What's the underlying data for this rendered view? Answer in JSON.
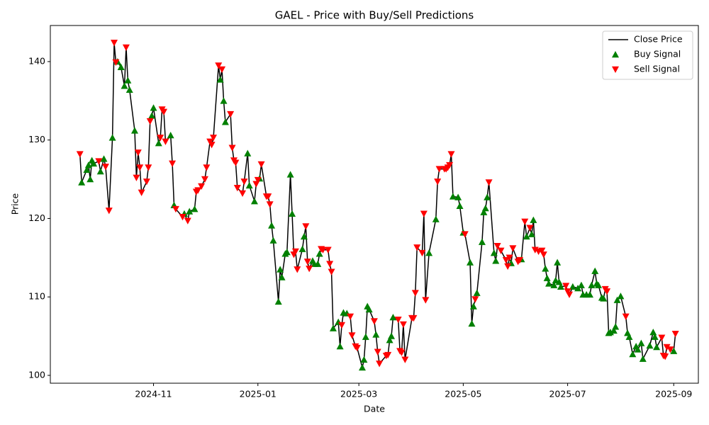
{
  "chart_data": {
    "type": "line",
    "title": "GAEL - Price with Buy/Sell Predictions",
    "x_label": "Date",
    "y_label": "Price",
    "xlim": [
      -29.3,
      349.4
    ],
    "xticks": [
      {
        "value": 31,
        "label": "2024-11"
      },
      {
        "value": 92,
        "label": "2025-01"
      },
      {
        "value": 151,
        "label": "2025-03"
      },
      {
        "value": 212,
        "label": "2025-05"
      },
      {
        "value": 273,
        "label": "2025-07"
      },
      {
        "value": 335,
        "label": "2025-09"
      }
    ],
    "ylim": [
      99.0,
      144.6
    ],
    "yticks": [
      100,
      110,
      120,
      130,
      140
    ],
    "grid": false,
    "legend": "upper right",
    "x": [
      -12,
      -11,
      -8,
      -7,
      -6,
      -5,
      -4,
      -1,
      0,
      2,
      3,
      5,
      7,
      8,
      9,
      10,
      12,
      14,
      15,
      16,
      17,
      20,
      21,
      22,
      23,
      24,
      27,
      28,
      29,
      30,
      31,
      34,
      35,
      36,
      37,
      38,
      41,
      42,
      43,
      44,
      48,
      49,
      51,
      52,
      55,
      56,
      57,
      59,
      61,
      62,
      64,
      65,
      66,
      69,
      70,
      71,
      72,
      73,
      76,
      77,
      78,
      79,
      80,
      83,
      84,
      86,
      87,
      90,
      91,
      92,
      93,
      94,
      97,
      98,
      99,
      100,
      101,
      104,
      105,
      106,
      108,
      109,
      111,
      112,
      113,
      114,
      115,
      118,
      119,
      120,
      121,
      122,
      124,
      125,
      127,
      128,
      129,
      130,
      133,
      134,
      135,
      136,
      139,
      140,
      141,
      142,
      144,
      146,
      147,
      149,
      150,
      153,
      154,
      155,
      156,
      157,
      160,
      161,
      162,
      163,
      167,
      168,
      169,
      170,
      171,
      174,
      175,
      176,
      177,
      178,
      182,
      183,
      184,
      185,
      188,
      189,
      190,
      192,
      196,
      197,
      198,
      201,
      202,
      203,
      204,
      205,
      206,
      209,
      210,
      212,
      213,
      216,
      217,
      218,
      219,
      220,
      223,
      224,
      225,
      226,
      227,
      230,
      231,
      232,
      234,
      237,
      238,
      239,
      240,
      241,
      244,
      245,
      246,
      248,
      249,
      251,
      252,
      253,
      254,
      256,
      258,
      259,
      260,
      261,
      262,
      265,
      266,
      267,
      268,
      269,
      272,
      273,
      274,
      276,
      279,
      281,
      282,
      284,
      286,
      287,
      289,
      290,
      291,
      293,
      294,
      295,
      296,
      297,
      298,
      300,
      301,
      302,
      304,
      307,
      308,
      309,
      311,
      313,
      314,
      316,
      317,
      321,
      323,
      324,
      325,
      328,
      329,
      330,
      331,
      333,
      335,
      336
    ],
    "series": [
      {
        "name": "Close Price",
        "color": "#000000",
        "marker": "none",
        "values": [
          128.2,
          124.6,
          126.2,
          126.8,
          125.0,
          127.4,
          127.0,
          127.3,
          126.0,
          127.6,
          126.6,
          121.0,
          130.3,
          142.4,
          139.9,
          140.0,
          139.3,
          136.9,
          141.8,
          137.6,
          136.4,
          131.2,
          125.2,
          128.4,
          126.5,
          123.3,
          124.7,
          126.5,
          132.4,
          133.1,
          134.1,
          129.6,
          130.3,
          133.9,
          133.6,
          129.8,
          130.6,
          127.0,
          121.7,
          121.2,
          120.2,
          120.6,
          119.7,
          120.9,
          121.2,
          123.4,
          123.6,
          124.1,
          125.0,
          126.5,
          129.8,
          129.4,
          130.3,
          139.5,
          137.7,
          139.0,
          135.0,
          132.3,
          133.3,
          129.0,
          127.4,
          127.1,
          123.9,
          123.2,
          124.7,
          128.3,
          124.2,
          122.2,
          124.4,
          124.9,
          125.1,
          126.9,
          122.8,
          122.8,
          121.8,
          119.1,
          117.2,
          109.4,
          113.5,
          112.5,
          115.5,
          115.7,
          125.6,
          120.6,
          115.4,
          115.8,
          113.5,
          116.1,
          117.7,
          119.0,
          114.5,
          113.6,
          114.6,
          114.2,
          114.2,
          115.5,
          116.1,
          116.0,
          116.0,
          114.2,
          113.2,
          106.0,
          106.8,
          103.7,
          106.4,
          108.0,
          107.9,
          107.5,
          105.1,
          103.7,
          103.5,
          101.0,
          102.0,
          104.9,
          108.8,
          108.4,
          106.9,
          105.2,
          103.0,
          101.5,
          102.5,
          102.6,
          104.5,
          105.0,
          107.4,
          107.1,
          103.1,
          102.9,
          106.5,
          102.0,
          107.3,
          107.3,
          110.5,
          116.3,
          115.6,
          120.6,
          109.6,
          115.6,
          119.9,
          124.7,
          126.3,
          126.3,
          126.3,
          126.5,
          126.8,
          128.2,
          122.8,
          122.7,
          121.6,
          118.2,
          118.0,
          114.4,
          106.6,
          108.8,
          109.7,
          110.5,
          117.0,
          120.8,
          121.3,
          122.7,
          124.6,
          115.6,
          114.6,
          116.5,
          115.9,
          114.7,
          113.9,
          115.0,
          114.3,
          116.2,
          114.5,
          114.7,
          114.8,
          119.6,
          117.7,
          118.8,
          118.0,
          119.8,
          116.0,
          115.8,
          115.9,
          115.4,
          113.6,
          112.4,
          111.7,
          111.5,
          112.1,
          114.4,
          111.9,
          111.3,
          111.4,
          110.7,
          110.3,
          111.3,
          111.1,
          111.5,
          110.3,
          110.3,
          110.3,
          111.5,
          113.3,
          111.7,
          111.5,
          109.9,
          109.8,
          111.0,
          110.7,
          105.4,
          105.5,
          105.7,
          106.2,
          109.6,
          110.1,
          107.5,
          105.4,
          104.9,
          102.7,
          103.7,
          103.3,
          104.1,
          102.1,
          103.8,
          105.5,
          104.9,
          103.6,
          104.8,
          102.5,
          102.4,
          103.6,
          103.3,
          103.1,
          105.3
        ]
      },
      {
        "name": "Buy Signal",
        "color": "#008000",
        "marker": "triangle-up",
        "x": [
          -11,
          -8,
          -7,
          -6,
          -5,
          -4,
          0,
          2,
          7,
          10,
          12,
          14,
          16,
          17,
          20,
          30,
          31,
          34,
          41,
          43,
          49,
          52,
          55,
          70,
          72,
          73,
          86,
          87,
          90,
          93,
          100,
          101,
          104,
          105,
          106,
          108,
          109,
          111,
          112,
          118,
          119,
          124,
          125,
          127,
          128,
          136,
          139,
          140,
          142,
          144,
          153,
          154,
          155,
          156,
          157,
          161,
          169,
          170,
          171,
          192,
          196,
          206,
          209,
          210,
          212,
          216,
          217,
          218,
          220,
          223,
          224,
          225,
          226,
          230,
          231,
          240,
          246,
          249,
          252,
          253,
          260,
          261,
          262,
          265,
          266,
          267,
          268,
          269,
          276,
          279,
          281,
          282,
          284,
          286,
          287,
          289,
          290,
          291,
          293,
          294,
          297,
          298,
          300,
          301,
          302,
          304,
          308,
          309,
          311,
          313,
          314,
          316,
          317,
          321,
          323,
          324,
          325,
          335
        ],
        "values": [
          124.6,
          126.2,
          126.8,
          125.0,
          127.4,
          127.0,
          126.0,
          127.6,
          130.3,
          140.0,
          139.3,
          136.9,
          137.6,
          136.4,
          131.2,
          133.1,
          134.1,
          129.6,
          130.6,
          121.7,
          120.6,
          120.9,
          121.2,
          137.7,
          135.0,
          132.3,
          128.3,
          124.2,
          122.2,
          125.1,
          119.1,
          117.2,
          109.4,
          113.5,
          112.5,
          115.5,
          115.7,
          125.6,
          120.6,
          116.1,
          117.7,
          114.6,
          114.2,
          114.2,
          115.5,
          106.0,
          106.8,
          103.7,
          108.0,
          107.9,
          101.0,
          102.0,
          104.9,
          108.8,
          108.4,
          105.2,
          104.5,
          105.0,
          107.4,
          115.6,
          119.9,
          122.8,
          122.7,
          121.6,
          118.2,
          114.4,
          106.6,
          108.8,
          110.5,
          117.0,
          120.8,
          121.3,
          122.7,
          115.6,
          114.6,
          114.3,
          114.8,
          117.7,
          118.0,
          119.8,
          113.6,
          112.4,
          111.7,
          111.5,
          112.1,
          114.4,
          111.9,
          111.3,
          111.3,
          111.1,
          111.5,
          110.3,
          110.3,
          110.3,
          111.5,
          113.3,
          111.7,
          111.5,
          109.9,
          109.8,
          105.4,
          105.5,
          105.7,
          106.2,
          109.6,
          110.1,
          105.4,
          104.9,
          102.7,
          103.7,
          103.3,
          104.1,
          102.1,
          103.8,
          105.5,
          104.9,
          103.6,
          103.1
        ]
      },
      {
        "name": "Sell Signal",
        "color": "#ff0000",
        "marker": "triangle-down",
        "x": [
          -12,
          -1,
          3,
          5,
          8,
          9,
          15,
          21,
          22,
          23,
          24,
          27,
          28,
          29,
          35,
          36,
          37,
          38,
          42,
          44,
          48,
          51,
          56,
          57,
          59,
          61,
          62,
          64,
          65,
          66,
          69,
          71,
          76,
          77,
          78,
          79,
          80,
          83,
          84,
          91,
          92,
          94,
          97,
          98,
          99,
          113,
          114,
          115,
          120,
          121,
          122,
          129,
          130,
          133,
          134,
          135,
          141,
          146,
          147,
          149,
          150,
          160,
          162,
          163,
          167,
          168,
          174,
          175,
          176,
          177,
          178,
          182,
          183,
          184,
          185,
          188,
          189,
          190,
          197,
          198,
          201,
          202,
          203,
          204,
          205,
          213,
          219,
          227,
          232,
          234,
          237,
          238,
          239,
          241,
          244,
          245,
          248,
          251,
          254,
          256,
          258,
          259,
          272,
          273,
          274,
          295,
          296,
          307,
          328,
          329,
          330,
          331,
          333,
          336
        ],
        "values": [
          128.2,
          127.3,
          126.6,
          121.0,
          142.4,
          139.9,
          141.8,
          125.2,
          128.4,
          126.5,
          123.3,
          124.7,
          126.5,
          132.4,
          130.3,
          133.9,
          133.6,
          129.8,
          127.0,
          121.2,
          120.2,
          119.7,
          123.4,
          123.6,
          124.1,
          125.0,
          126.5,
          129.8,
          129.4,
          130.3,
          139.5,
          139.0,
          133.3,
          129.0,
          127.4,
          127.1,
          123.9,
          123.2,
          124.7,
          124.4,
          124.9,
          126.9,
          122.8,
          122.8,
          121.8,
          115.4,
          115.8,
          113.5,
          119.0,
          114.5,
          113.6,
          116.1,
          116.0,
          116.0,
          114.2,
          113.2,
          106.4,
          107.5,
          105.1,
          103.7,
          103.5,
          106.9,
          103.0,
          101.5,
          102.5,
          102.6,
          107.1,
          103.1,
          102.9,
          106.5,
          102.0,
          107.3,
          107.3,
          110.5,
          116.3,
          115.6,
          120.6,
          109.6,
          124.7,
          126.3,
          126.3,
          126.3,
          126.5,
          126.8,
          128.2,
          118.0,
          109.7,
          124.6,
          116.5,
          115.9,
          114.7,
          113.9,
          115.0,
          116.2,
          114.5,
          114.7,
          119.6,
          118.8,
          116.0,
          115.8,
          115.9,
          115.4,
          111.4,
          110.7,
          110.3,
          111.0,
          110.7,
          107.5,
          104.8,
          102.5,
          102.4,
          103.6,
          103.3,
          105.3
        ]
      }
    ]
  }
}
